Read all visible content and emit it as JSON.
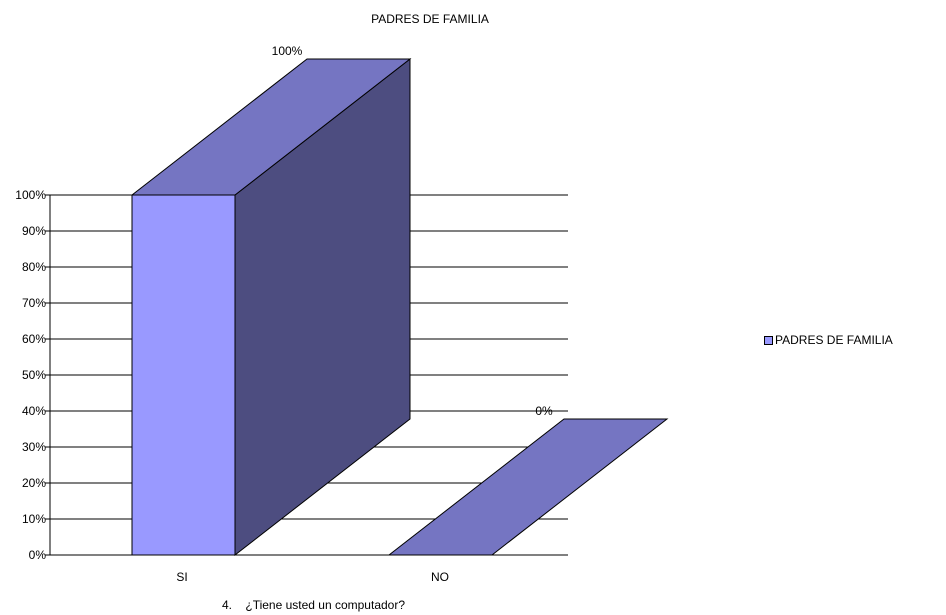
{
  "chart_data": {
    "type": "bar",
    "title": "PADRES DE FAMILIA",
    "categories": [
      "SI",
      "NO"
    ],
    "series": [
      {
        "name": "PADRES DE FAMILIA",
        "values": [
          100,
          0
        ],
        "labels": [
          "100%",
          "0%"
        ]
      }
    ],
    "y_ticks": [
      "0%",
      "10%",
      "20%",
      "30%",
      "40%",
      "50%",
      "60%",
      "70%",
      "80%",
      "90%",
      "100%"
    ],
    "ylim": [
      0,
      100
    ],
    "grid": true,
    "legend": "right",
    "caption_number": "4.",
    "caption": "¿Tiene usted un computador?"
  },
  "colors": {
    "front": "#9999ff",
    "top": "#7575c2",
    "side": "#4d4d80"
  }
}
